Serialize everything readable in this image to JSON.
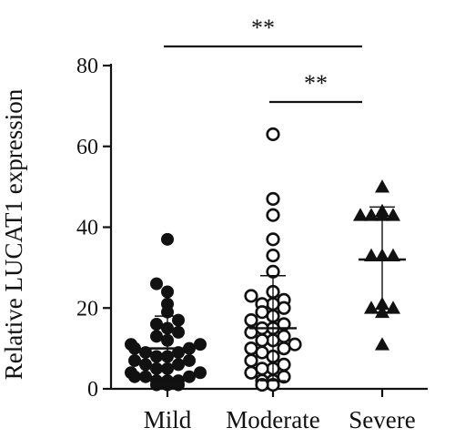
{
  "chart_data": {
    "type": "scatter",
    "ylabel": "Relative LUCAT1 expression",
    "xlabel": "",
    "ylim": [
      0,
      80
    ],
    "yticks": [
      0,
      20,
      40,
      60,
      80
    ],
    "categories": [
      "Mild",
      "Moderate",
      "Severe"
    ],
    "grid": false,
    "legend": "none",
    "groups": [
      {
        "name": "Mild",
        "marker": "filled-circle",
        "mean": 10,
        "sd_low": 2,
        "sd_high": 18,
        "points": [
          37,
          26,
          24,
          21,
          19,
          17,
          16,
          15,
          14,
          13,
          12,
          11,
          11,
          10,
          10,
          9,
          9,
          8,
          8,
          7,
          7,
          6,
          6,
          5,
          5,
          4,
          4,
          3,
          3,
          3,
          2,
          2,
          2,
          1,
          1,
          1
        ]
      },
      {
        "name": "Moderate",
        "marker": "open-circle",
        "mean": 15,
        "sd_low": 2,
        "sd_high": 28,
        "points": [
          63,
          47,
          43,
          37,
          33,
          29,
          24,
          23,
          22,
          21,
          21,
          20,
          19,
          18,
          17,
          16,
          15,
          15,
          14,
          13,
          12,
          12,
          11,
          10,
          10,
          9,
          8,
          7,
          6,
          5,
          5,
          4,
          3,
          2,
          2,
          1,
          1
        ]
      },
      {
        "name": "Severe",
        "marker": "filled-triangle",
        "mean": 32,
        "sd_low": 19,
        "sd_high": 45,
        "points": [
          50,
          44,
          43,
          43,
          43,
          43,
          33,
          33,
          33,
          21,
          20,
          20,
          19,
          11
        ]
      }
    ],
    "annotations": [
      {
        "text": "**",
        "from": "Mild",
        "to": "Severe",
        "level": 1
      },
      {
        "text": "**",
        "from": "Moderate",
        "to": "Severe",
        "level": 2
      }
    ]
  }
}
